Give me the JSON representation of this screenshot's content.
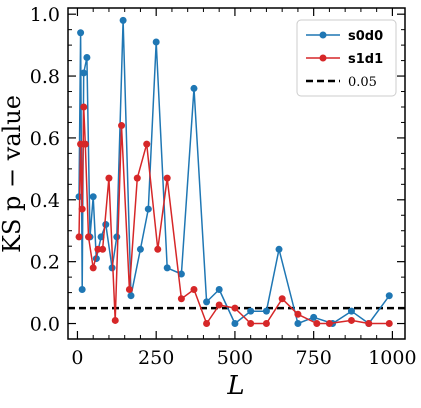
{
  "chart_data": {
    "type": "line",
    "xlabel": "L",
    "ylabel": "KS  p − value",
    "xlim": [
      -30,
      1040
    ],
    "ylim": [
      -0.05,
      1.02
    ],
    "xticks": [
      0,
      250,
      500,
      750,
      1000
    ],
    "yticks": [
      0.0,
      0.2,
      0.4,
      0.6,
      0.8,
      1.0
    ],
    "xtick_labels": [
      "0",
      "250",
      "500",
      "750",
      "1000"
    ],
    "ytick_labels": [
      "0.0",
      "0.2",
      "0.4",
      "0.6",
      "0.8",
      "1.0"
    ],
    "legend_position": "top-right",
    "series": [
      {
        "name": "s0d0",
        "color": "#1f77b4",
        "x": [
          5,
          10,
          15,
          20,
          30,
          40,
          50,
          60,
          75,
          90,
          110,
          125,
          145,
          170,
          200,
          225,
          250,
          285,
          330,
          370,
          410,
          450,
          500,
          550,
          600,
          640,
          700,
          750,
          810,
          870,
          925,
          990
        ],
        "y": [
          0.41,
          0.94,
          0.11,
          0.81,
          0.86,
          0.28,
          0.41,
          0.21,
          0.28,
          0.32,
          0.18,
          0.28,
          0.98,
          0.09,
          0.24,
          0.37,
          0.91,
          0.18,
          0.16,
          0.76,
          0.07,
          0.11,
          0.0,
          0.04,
          0.04,
          0.24,
          0.0,
          0.02,
          0.0,
          0.04,
          0.0,
          0.09
        ]
      },
      {
        "name": "s1d1",
        "color": "#d62728",
        "x": [
          5,
          10,
          15,
          20,
          25,
          35,
          50,
          65,
          80,
          100,
          120,
          140,
          165,
          190,
          220,
          255,
          285,
          330,
          370,
          410,
          450,
          500,
          550,
          600,
          650,
          700,
          760,
          800,
          870,
          925,
          990
        ],
        "y": [
          0.28,
          0.58,
          0.37,
          0.7,
          0.58,
          0.28,
          0.18,
          0.24,
          0.24,
          0.47,
          0.01,
          0.64,
          0.11,
          0.47,
          0.58,
          0.24,
          0.47,
          0.08,
          0.11,
          0.0,
          0.06,
          0.05,
          0.0,
          0.0,
          0.08,
          0.03,
          0.0,
          0.0,
          0.01,
          0.0,
          0.0
        ]
      },
      {
        "name": "0.05",
        "color": "#000000",
        "style": "dashed",
        "y": 0.05
      }
    ]
  }
}
